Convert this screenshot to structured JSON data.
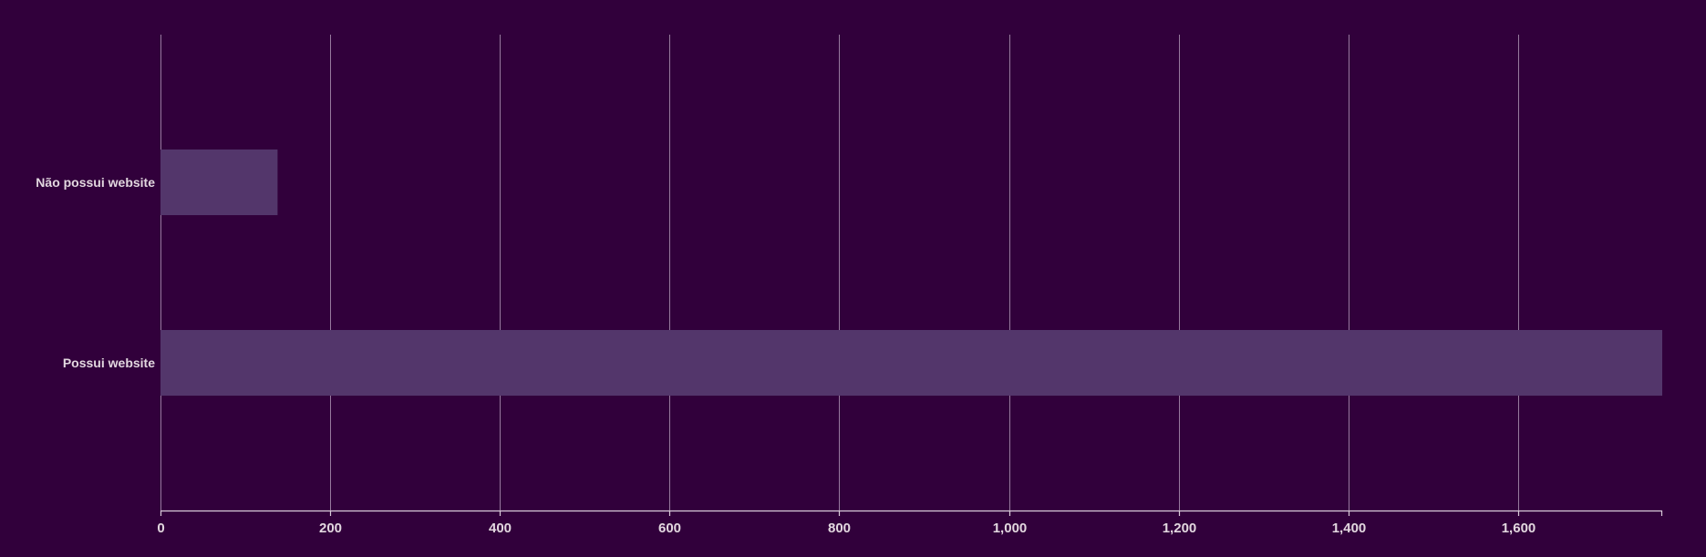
{
  "chart_data": {
    "type": "bar",
    "orientation": "horizontal",
    "categories": [
      "Não possui website",
      "Possui website"
    ],
    "values": [
      138,
      1770
    ],
    "title": "",
    "xlabel": "",
    "ylabel": "",
    "xlim": [
      0,
      1770
    ],
    "x_ticks": [
      0,
      200,
      400,
      600,
      800,
      1000,
      1200,
      1400,
      1600
    ],
    "x_tick_labels": [
      "0",
      "200",
      "400",
      "600",
      "800",
      "1,000",
      "1,200",
      "1,400",
      "1,600"
    ],
    "grid": true,
    "legend": "none",
    "colors": {
      "background": "#31003b",
      "bar": "#53366b",
      "grid": "#b9a3bf",
      "text": "#e2d7df"
    }
  }
}
